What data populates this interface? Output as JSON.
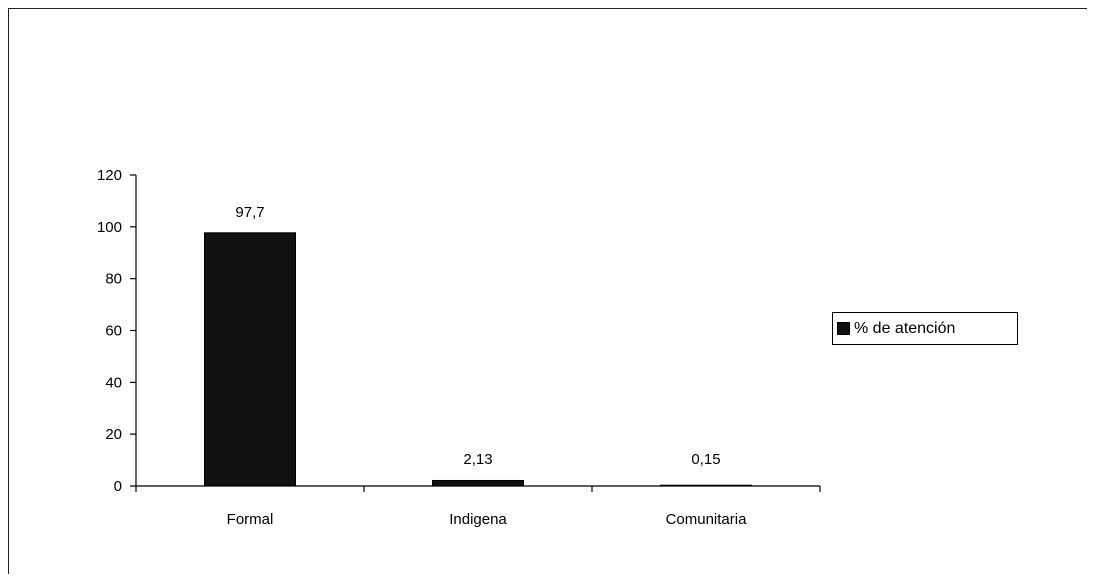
{
  "chart_data": {
    "type": "bar",
    "categories": [
      "Formal",
      "Indigena",
      "Comunitaria"
    ],
    "series": [
      {
        "name": "% de atención",
        "values": [
          97.7,
          2.13,
          0.15
        ],
        "labels": [
          "97,7",
          "2,13",
          "0,15"
        ],
        "color": "#111111"
      }
    ],
    "title": "",
    "xlabel": "",
    "ylabel": "",
    "ylim": [
      0,
      120
    ],
    "yticks": [
      0,
      20,
      40,
      60,
      80,
      100,
      120
    ],
    "grid": false,
    "legend_position": "right"
  }
}
